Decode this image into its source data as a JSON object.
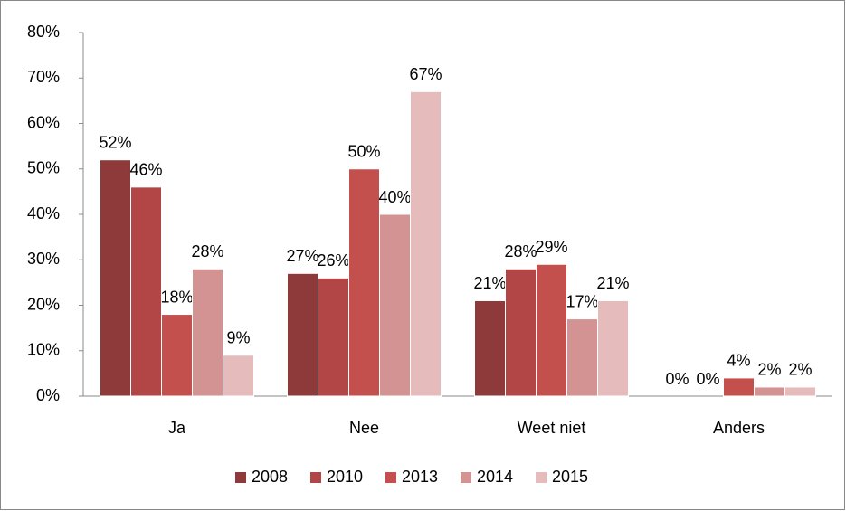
{
  "chart_data": {
    "type": "bar",
    "categories": [
      "Ja",
      "Nee",
      "Weet niet",
      "Anders"
    ],
    "series": [
      {
        "name": "2008",
        "color": "#8e3a3a",
        "values": [
          52,
          27,
          21,
          0
        ],
        "value_labels": [
          "52%",
          "27%",
          "21%",
          "0%"
        ]
      },
      {
        "name": "2010",
        "color": "#b24646",
        "values": [
          46,
          26,
          28,
          0
        ],
        "value_labels": [
          "46%",
          "26%",
          "28%",
          "0%"
        ]
      },
      {
        "name": "2013",
        "color": "#c4504e",
        "values": [
          18,
          50,
          29,
          4
        ],
        "value_labels": [
          "18%",
          "50%",
          "29%",
          "4%"
        ]
      },
      {
        "name": "2014",
        "color": "#d39392",
        "values": [
          28,
          40,
          17,
          2
        ],
        "value_labels": [
          "28%",
          "40%",
          "17%",
          "2%"
        ]
      },
      {
        "name": "2015",
        "color": "#e5bbbb",
        "values": [
          9,
          67,
          21,
          2
        ],
        "value_labels": [
          "9%",
          "67%",
          "21%",
          "2%"
        ]
      }
    ],
    "ylim": [
      0,
      80
    ],
    "yticks": [
      {
        "value": 0,
        "label": "0%"
      },
      {
        "value": 10,
        "label": "10%"
      },
      {
        "value": 20,
        "label": "20%"
      },
      {
        "value": 30,
        "label": "30%"
      },
      {
        "value": 40,
        "label": "40%"
      },
      {
        "value": 50,
        "label": "50%"
      },
      {
        "value": 60,
        "label": "60%"
      },
      {
        "value": 70,
        "label": "70%"
      },
      {
        "value": 80,
        "label": "80%"
      }
    ],
    "grid": false,
    "legend": "bottom"
  }
}
